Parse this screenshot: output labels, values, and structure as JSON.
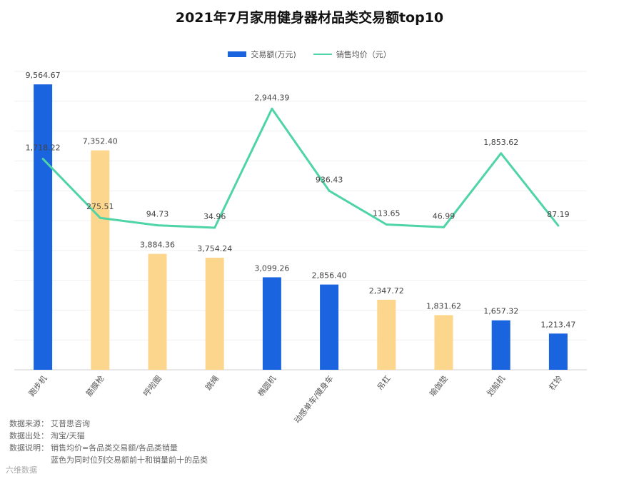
{
  "chart_data": {
    "type": "bar",
    "title": "2021年7月家用健身器材品类交易额top10",
    "categories": [
      "跑步机",
      "筋膜枪",
      "呼啦圈",
      "跳绳",
      "椭圆机",
      "动感单车/健身车",
      "吊杠",
      "瑜伽垫",
      "划船机",
      "杠铃"
    ],
    "series": [
      {
        "name": "交易额(万元)",
        "kind": "bar",
        "values": [
          9564.67,
          7352.4,
          3884.36,
          3754.24,
          3099.26,
          2856.4,
          2347.72,
          1831.62,
          1657.32,
          1213.47
        ],
        "labels": [
          "9,564.67",
          "7,352.40",
          "3,884.36",
          "3,754.24",
          "3,099.26",
          "2,856.40",
          "2,347.72",
          "1,831.62",
          "1,657.32",
          "1,213.47"
        ],
        "colors": [
          "#1b64e0",
          "#fcd68c",
          "#fcd68c",
          "#fcd68c",
          "#1b64e0",
          "#1b64e0",
          "#fcd68c",
          "#fcd68c",
          "#1b64e0",
          "#1b64e0"
        ]
      },
      {
        "name": "销售均价（元）",
        "kind": "line",
        "color": "#4fd4a6",
        "values": [
          1718.22,
          275.51,
          94.73,
          34.96,
          2944.39,
          936.43,
          113.65,
          46.99,
          1853.62,
          87.19
        ],
        "labels": [
          "1,718.22",
          "275.51",
          "94.73",
          "34.96",
          "2,944.39",
          "936.43",
          "113.65",
          "46.99",
          "1,853.62",
          "87.19"
        ]
      }
    ],
    "ylim": [
      0,
      10000
    ],
    "grid": true,
    "legend_position": "top-center"
  },
  "notes": [
    {
      "key": "数据来源：",
      "value": "艾普思咨询"
    },
    {
      "key": "数据出处：",
      "value": "淘宝/天猫"
    },
    {
      "key": "数据说明：",
      "value": "销售均价=各品类交易额/各品类销量"
    },
    {
      "key": "",
      "value": "蓝色为同时位列交易额前十和销量前十的品类"
    }
  ],
  "brand": "六维数据"
}
